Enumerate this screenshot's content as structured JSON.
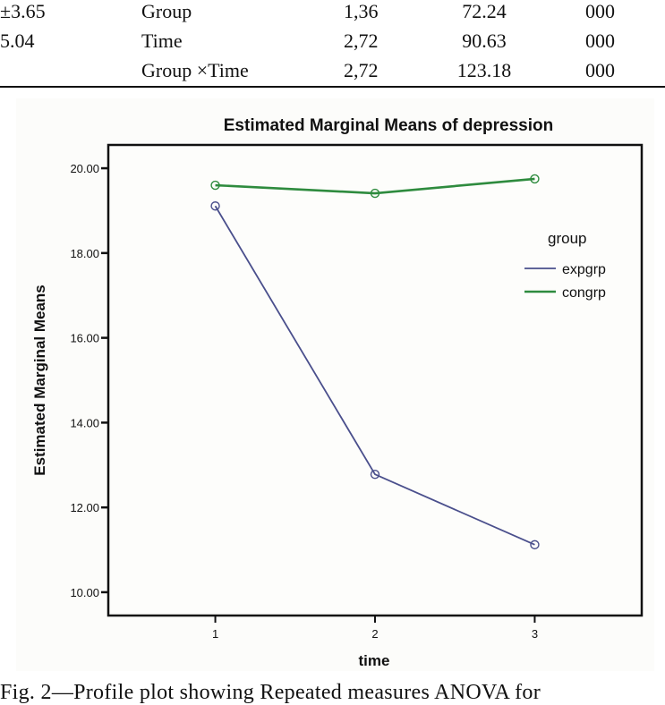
{
  "table": {
    "rows": [
      {
        "col0": "±3.65",
        "source": "Group",
        "df": "1,36",
        "f": "72.24",
        "p": "000"
      },
      {
        "col0": "5.04",
        "source": "Time",
        "df": "2,72",
        "f": "90.63",
        "p": "000"
      },
      {
        "col0": "",
        "source": "Group ×Time",
        "df": "2,72",
        "f": "123.18",
        "p": "000"
      }
    ]
  },
  "chart_data": {
    "type": "line",
    "title": "Estimated Marginal Means of depression",
    "xlabel": "time",
    "ylabel": "Estimated Marginal Means",
    "x": [
      1,
      2,
      3
    ],
    "x_tick_labels": [
      "1",
      "2",
      "3"
    ],
    "y_ticks": [
      10,
      12,
      14,
      16,
      18,
      20
    ],
    "y_tick_labels": [
      "10.00",
      "12.00",
      "14.00",
      "16.00",
      "18.00",
      "20.00"
    ],
    "ylim": [
      9.45,
      20.55
    ],
    "xlim": [
      0.33,
      3.67
    ],
    "grid": false,
    "legend": {
      "title": "group",
      "position": "right"
    },
    "series": [
      {
        "name": "expgrp",
        "color": "#4a4f8c",
        "values": [
          19.11,
          12.78,
          11.12
        ]
      },
      {
        "name": "congrp",
        "color": "#2e8b3e",
        "values": [
          19.6,
          19.41,
          19.75
        ]
      }
    ]
  },
  "caption": "Fig. 2—Profile plot showing Repeated measures ANOVA for"
}
